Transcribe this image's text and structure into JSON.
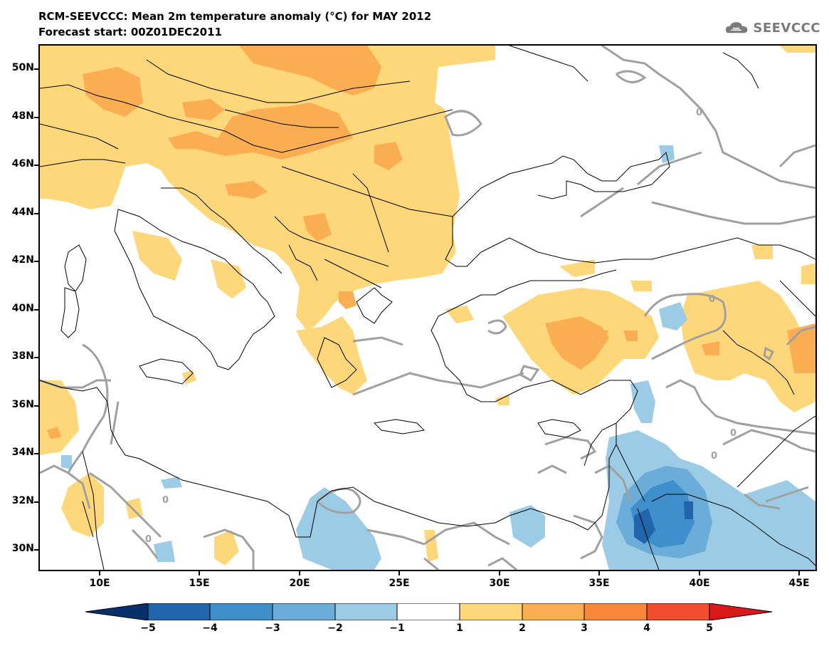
{
  "header": {
    "title": "RCM-SEEVCCC: Mean 2m temperature anomaly (°C) for MAY 2012",
    "subtitle": "Forecast start: 00Z01DEC2011",
    "logo_text": "SEEVCCC"
  },
  "map": {
    "latitude_labels": [
      "50N",
      "48N",
      "46N",
      "44N",
      "42N",
      "40N",
      "38N",
      "36N",
      "34N",
      "32N",
      "30N"
    ],
    "longitude_labels": [
      "10E",
      "15E",
      "20E",
      "25E",
      "30E",
      "35E",
      "40E",
      "45E"
    ],
    "contour_labels": [
      "0",
      "0",
      "0",
      "0",
      "0",
      "0"
    ],
    "colors": {
      "land_outline": "#000000",
      "contour": "#a0a0a0",
      "warm_1_2": "#fdd77a",
      "warm_2_3": "#fbad51",
      "cold_2_1": "#9ccbe6",
      "cold_3_2": "#6aadd9",
      "cold_4_3": "#3f8fcc",
      "cold_5_4": "#2166ac"
    }
  },
  "colorbar": {
    "tick_labels": [
      "−5",
      "−4",
      "−3",
      "−2",
      "−1",
      "1",
      "2",
      "3",
      "4",
      "5"
    ],
    "colors": [
      "#08306b",
      "#2166ac",
      "#3f8fcc",
      "#6aadd9",
      "#9ccbe6",
      "#ffffff",
      "#fdd77a",
      "#fbad51",
      "#f98739",
      "#f24d2e",
      "#d7191c"
    ]
  }
}
